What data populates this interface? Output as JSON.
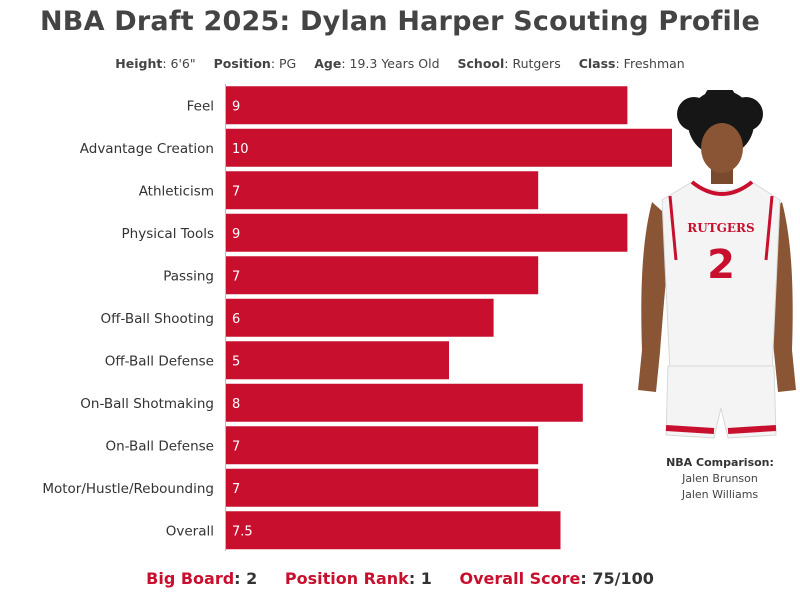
{
  "title": "NBA Draft 2025: Dylan Harper Scouting Profile",
  "meta": {
    "height_key": "Height",
    "height_val": ": 6'6\"",
    "position_key": "Position",
    "position_val": ": PG",
    "age_key": "Age",
    "age_val": ": 19.3 Years Old",
    "school_key": "School",
    "school_val": ": Rutgers",
    "class_key": "Class",
    "class_val": ": Freshman"
  },
  "chart_data": {
    "type": "bar",
    "orientation": "horizontal",
    "categories": [
      "Feel",
      "Advantage Creation",
      "Athleticism",
      "Physical Tools",
      "Passing",
      "Off-Ball Shooting",
      "Off-Ball Defense",
      "On-Ball Shotmaking",
      "On-Ball Defense",
      "Motor/Hustle/Rebounding",
      "Overall"
    ],
    "values": [
      9,
      10,
      7,
      9,
      7,
      6,
      5,
      8,
      7,
      7,
      7.5
    ],
    "xlim": [
      0,
      10
    ],
    "bar_color": "#c8102e",
    "grid": false,
    "legend": "none"
  },
  "player_image": {
    "jersey_text": "RUTGERS",
    "jersey_number": "2"
  },
  "comparison": {
    "heading": "NBA Comparison:",
    "players": [
      "Jalen Brunson",
      "Jalen Williams"
    ]
  },
  "footer": {
    "big_board_key": "Big Board",
    "big_board_val": ": 2",
    "position_rank_key": "Position Rank",
    "position_rank_val": ": 1",
    "overall_score_key": "Overall Score",
    "overall_score_val": ": 75/100"
  },
  "colors": {
    "accent": "#c8102e",
    "title": "#444444",
    "text": "#333333"
  }
}
